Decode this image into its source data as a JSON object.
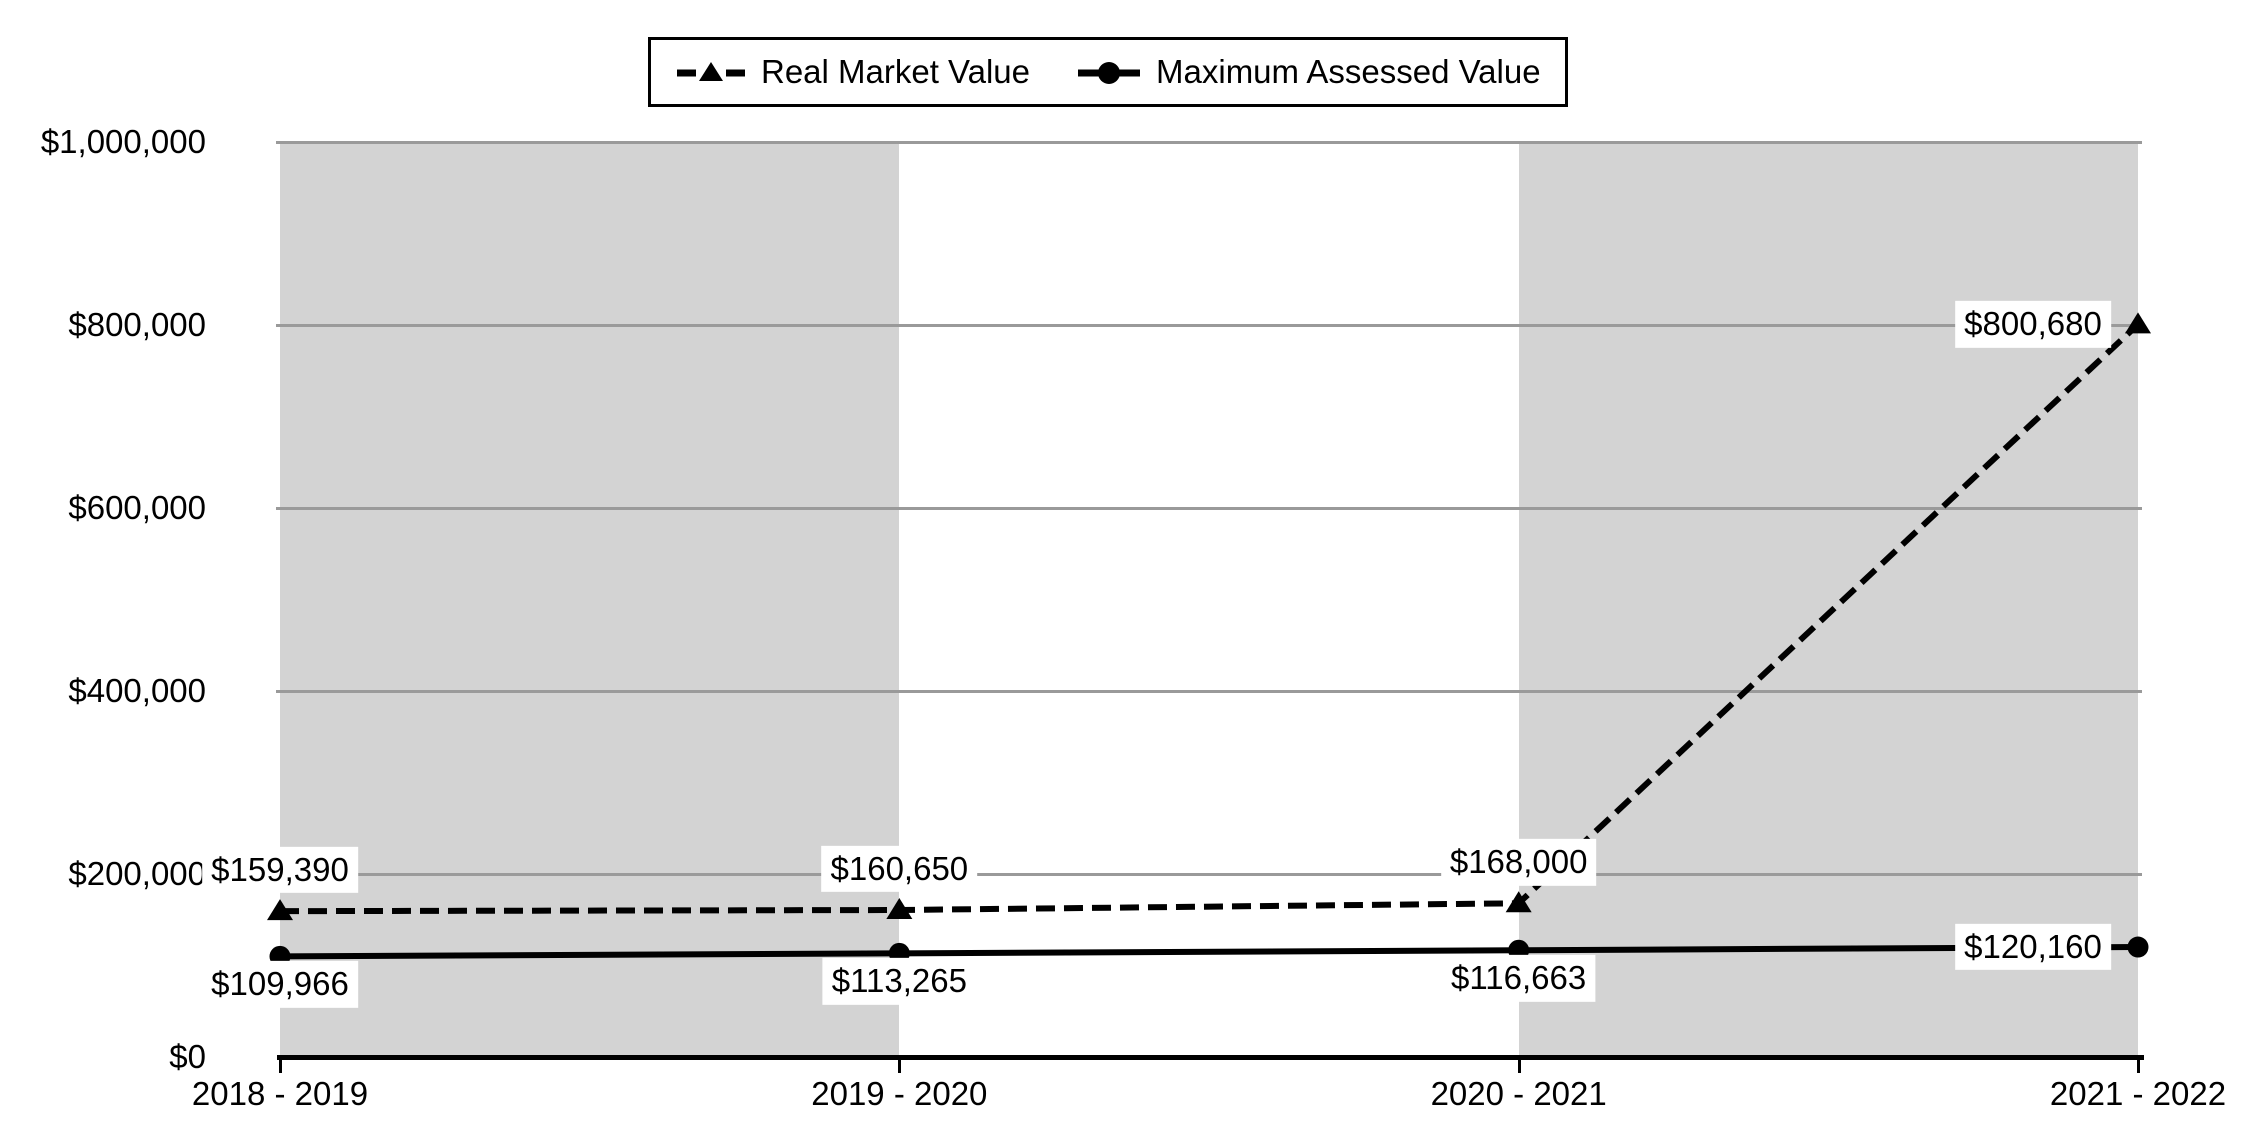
{
  "chart_data": {
    "type": "line",
    "title": "",
    "categories": [
      "2018 - 2019",
      "2019 - 2020",
      "2020 - 2021",
      "2021 - 2022"
    ],
    "series": [
      {
        "name": "Real Market Value",
        "line_style": "dashed",
        "marker": "triangle",
        "color": "#000000",
        "values": [
          159390,
          160650,
          168000,
          800680
        ],
        "labels": [
          "$159,390",
          "$160,650",
          "$168,000",
          "$800,680"
        ],
        "label_positions": [
          "above",
          "above",
          "above",
          "left"
        ]
      },
      {
        "name": "Maximum Assessed Value",
        "line_style": "solid",
        "marker": "circle",
        "color": "#000000",
        "values": [
          109966,
          113265,
          116663,
          120160
        ],
        "labels": [
          "$109,966",
          "$113,265",
          "$116,663",
          "$120,160"
        ],
        "label_positions": [
          "below",
          "below",
          "below",
          "left"
        ]
      }
    ],
    "y_axis": {
      "min": 0,
      "max": 1000000,
      "step": 200000,
      "tick_labels": [
        "$0",
        "$200,000",
        "$400,000",
        "$600,000",
        "$800,000",
        "$1,000,000"
      ]
    },
    "x_axis": {
      "tick_labels": [
        "2018 - 2019",
        "2019 - 2020",
        "2020 - 2021",
        "2021 - 2022"
      ]
    },
    "grid": true,
    "legend_position": "top-center",
    "plot_bands": [
      "#d3d3d3",
      "#ffffff",
      "#d3d3d3"
    ],
    "colors": {
      "series": "#000000",
      "gridline": "#9a9a9a",
      "band_gray": "#d3d3d3",
      "axis": "#000000",
      "label_background": "#ffffff",
      "background": "#ffffff"
    }
  }
}
